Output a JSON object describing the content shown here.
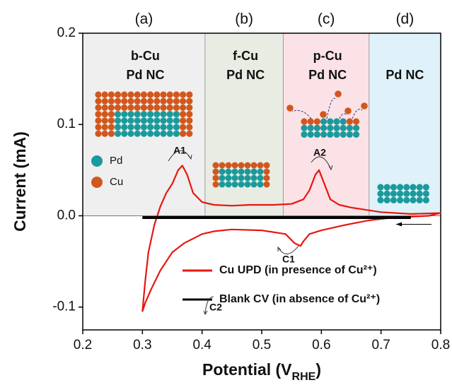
{
  "chart_data": {
    "type": "line",
    "xlabel": {
      "text": "Potential (V",
      "sub": "RHE",
      "end": ")"
    },
    "ylabel": "Current (mA)",
    "xlim": [
      0.2,
      0.8
    ],
    "ylim": [
      -0.125,
      0.2
    ],
    "xticks": [
      0.2,
      0.3,
      0.4,
      0.5,
      0.6,
      0.7,
      0.8
    ],
    "yticks": [
      -0.1,
      {
        "value": 0,
        "label": "0.0"
      },
      0.1,
      0.2
    ],
    "regions": [
      {
        "label": "(a)",
        "lines": [
          "b-Cu",
          "Pd NC"
        ],
        "x_range": [
          0.2,
          0.405
        ],
        "color": "#efefef"
      },
      {
        "label": "(b)",
        "lines": [
          "f-Cu",
          "Pd NC"
        ],
        "x_range": [
          0.405,
          0.536
        ],
        "color": "#e8ece3"
      },
      {
        "label": "(c)",
        "lines": [
          "p-Cu",
          "Pd NC"
        ],
        "x_range": [
          0.536,
          0.68
        ],
        "color": "#fbe2e6"
      },
      {
        "label": "(d)",
        "lines": [
          "Pd NC"
        ],
        "x_range": [
          0.68,
          0.8
        ],
        "color": "#dff2f9"
      }
    ],
    "series": [
      {
        "name": "Cu UPD (in presence of Cu²⁺)",
        "color": "#e8160f",
        "x": [
          0.3,
          0.305,
          0.31,
          0.32,
          0.33,
          0.34,
          0.35,
          0.36,
          0.367,
          0.375,
          0.385,
          0.4,
          0.42,
          0.45,
          0.48,
          0.52,
          0.55,
          0.57,
          0.58,
          0.59,
          0.596,
          0.605,
          0.615,
          0.63,
          0.65,
          0.7,
          0.75,
          0.8,
          0.78,
          0.72,
          0.68,
          0.64,
          0.6,
          0.58,
          0.57,
          0.565,
          0.555,
          0.54,
          0.5,
          0.45,
          0.42,
          0.4,
          0.37,
          0.35,
          0.33,
          0.315,
          0.305,
          0.3
        ],
        "values": [
          -0.105,
          -0.07,
          -0.04,
          -0.01,
          0.01,
          0.025,
          0.035,
          0.05,
          0.055,
          0.045,
          0.025,
          0.015,
          0.012,
          0.011,
          0.012,
          0.012,
          0.013,
          0.018,
          0.028,
          0.045,
          0.05,
          0.035,
          0.018,
          0.012,
          0.009,
          0.004,
          0.002,
          0.003,
          0.0,
          -0.002,
          -0.005,
          -0.01,
          -0.016,
          -0.02,
          -0.028,
          -0.033,
          -0.03,
          -0.02,
          -0.016,
          -0.015,
          -0.017,
          -0.02,
          -0.03,
          -0.04,
          -0.06,
          -0.08,
          -0.095,
          -0.105
        ]
      },
      {
        "name": "Blank CV (in absence of Cu²⁺)",
        "color": "#000000",
        "x": [
          0.3,
          0.75
        ],
        "values": [
          -0.002,
          -0.002
        ]
      }
    ],
    "annotations": [
      "A1",
      "A2",
      "C1",
      "C2"
    ],
    "species": [
      {
        "label": "Pd",
        "color": "#1a9a9c"
      },
      {
        "label": "Cu",
        "color": "#d2571c"
      }
    ]
  }
}
